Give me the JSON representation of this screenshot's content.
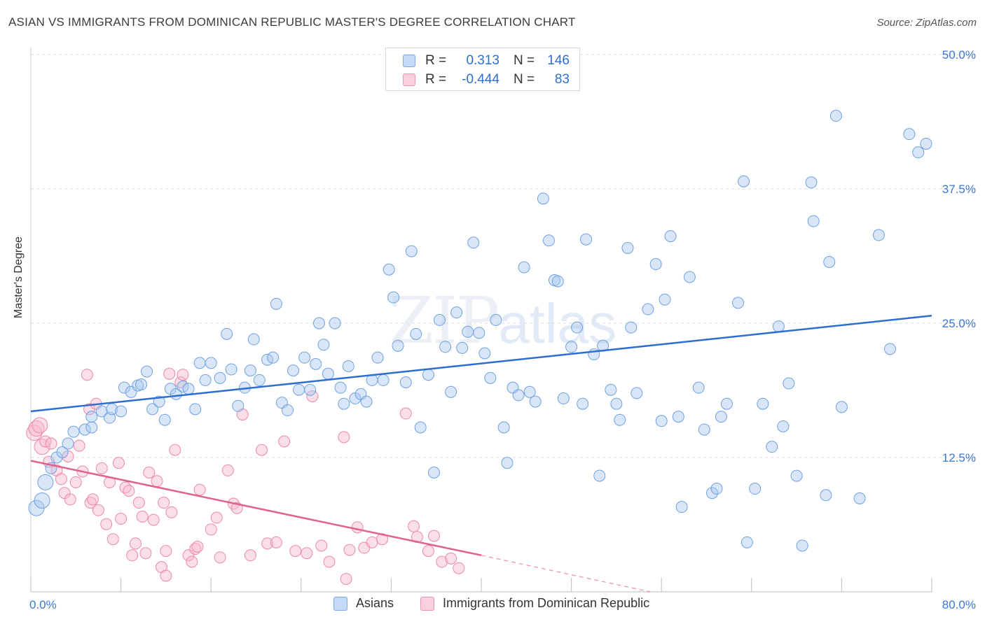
{
  "title": "ASIAN VS IMMIGRANTS FROM DOMINICAN REPUBLIC MASTER'S DEGREE CORRELATION CHART",
  "source": "Source: ZipAtlas.com",
  "watermark": {
    "zip": "ZIP",
    "atlas": "atlas"
  },
  "legend": {
    "rows": [
      {
        "r_label": "R =",
        "r_value": "0.313",
        "n_label": "N =",
        "n_value": "146",
        "color": "#a9c8ef"
      },
      {
        "r_label": "R =",
        "r_value": "-0.444",
        "n_label": "N =",
        "n_value": "83",
        "color": "#f6b7cb"
      }
    ]
  },
  "bottom_legend": [
    {
      "label": "Asians",
      "color": "#a9c8ef"
    },
    {
      "label": "Immigrants from Dominican Republic",
      "color": "#f6b7cb"
    }
  ],
  "chart_data": {
    "type": "scatter",
    "title": "ASIAN VS IMMIGRANTS FROM DOMINICAN REPUBLIC MASTER'S DEGREE CORRELATION CHART",
    "xlabel": "",
    "ylabel": "Master's Degree",
    "xlim": [
      0,
      80
    ],
    "ylim": [
      0,
      50
    ],
    "x_tick_labels": [
      "0.0%",
      "80.0%"
    ],
    "y_tick_labels": [
      "12.5%",
      "25.0%",
      "37.5%",
      "50.0%"
    ],
    "y_ticks": [
      12.5,
      25.0,
      37.5,
      50.0
    ],
    "grid": true,
    "legend_position": "top-center",
    "colors": {
      "asians": "#6fa1e0",
      "asians_fill": "#a9c8ef",
      "asians_line": "#2d6fd0",
      "dominican": "#ec88aa",
      "dominican_fill": "#f6b7cb",
      "dominican_line": "#e0628e",
      "axis_text": "#3a78d4"
    },
    "series": [
      {
        "name": "Asians",
        "trend": {
          "x": [
            0,
            80
          ],
          "y": [
            16.8,
            25.7
          ]
        },
        "points": [
          [
            0.5,
            7.8
          ],
          [
            1.0,
            8.5
          ],
          [
            1.3,
            10.2
          ],
          [
            1.8,
            11.5
          ],
          [
            2.3,
            12.5
          ],
          [
            2.8,
            13.0
          ],
          [
            3.3,
            13.8
          ],
          [
            3.8,
            14.9
          ],
          [
            4.8,
            15.1
          ],
          [
            5.4,
            15.3
          ],
          [
            5.4,
            16.3
          ],
          [
            6.3,
            16.8
          ],
          [
            7.0,
            16.2
          ],
          [
            7.2,
            17.0
          ],
          [
            8.0,
            16.8
          ],
          [
            8.3,
            19.0
          ],
          [
            8.9,
            18.6
          ],
          [
            9.5,
            19.2
          ],
          [
            9.8,
            19.3
          ],
          [
            10.3,
            20.5
          ],
          [
            10.8,
            17.0
          ],
          [
            11.4,
            17.7
          ],
          [
            11.9,
            16.0
          ],
          [
            12.4,
            18.9
          ],
          [
            12.9,
            18.4
          ],
          [
            13.5,
            19.1
          ],
          [
            14.0,
            18.9
          ],
          [
            14.6,
            17.0
          ],
          [
            15.0,
            21.3
          ],
          [
            15.5,
            19.7
          ],
          [
            16.0,
            21.3
          ],
          [
            16.8,
            19.9
          ],
          [
            17.4,
            24.0
          ],
          [
            17.8,
            20.7
          ],
          [
            18.4,
            17.3
          ],
          [
            19.0,
            19.0
          ],
          [
            19.5,
            20.6
          ],
          [
            19.8,
            23.5
          ],
          [
            20.3,
            19.7
          ],
          [
            21.0,
            21.6
          ],
          [
            21.5,
            21.8
          ],
          [
            21.8,
            26.8
          ],
          [
            22.3,
            17.6
          ],
          [
            22.8,
            16.9
          ],
          [
            23.3,
            20.6
          ],
          [
            23.8,
            18.8
          ],
          [
            24.3,
            21.8
          ],
          [
            24.8,
            18.8
          ],
          [
            25.3,
            21.2
          ],
          [
            25.6,
            25.0
          ],
          [
            26.0,
            23.0
          ],
          [
            26.4,
            20.3
          ],
          [
            27.0,
            25.0
          ],
          [
            27.5,
            19.0
          ],
          [
            27.8,
            17.5
          ],
          [
            28.2,
            21.0
          ],
          [
            28.8,
            18.0
          ],
          [
            29.3,
            18.4
          ],
          [
            29.8,
            17.7
          ],
          [
            30.3,
            19.7
          ],
          [
            30.8,
            21.8
          ],
          [
            31.3,
            19.7
          ],
          [
            31.8,
            30.0
          ],
          [
            32.2,
            27.4
          ],
          [
            32.6,
            22.9
          ],
          [
            33.3,
            19.5
          ],
          [
            33.8,
            31.7
          ],
          [
            34.2,
            24.0
          ],
          [
            34.6,
            15.3
          ],
          [
            35.3,
            20.2
          ],
          [
            35.8,
            11.1
          ],
          [
            36.3,
            25.3
          ],
          [
            36.8,
            22.8
          ],
          [
            37.3,
            18.6
          ],
          [
            37.8,
            26.0
          ],
          [
            38.3,
            22.7
          ],
          [
            38.8,
            24.2
          ],
          [
            39.3,
            32.5
          ],
          [
            39.8,
            24.1
          ],
          [
            40.3,
            22.2
          ],
          [
            40.8,
            19.9
          ],
          [
            41.3,
            25.3
          ],
          [
            42.0,
            15.3
          ],
          [
            42.3,
            12.0
          ],
          [
            42.8,
            19.0
          ],
          [
            43.3,
            18.3
          ],
          [
            43.8,
            30.2
          ],
          [
            44.3,
            18.6
          ],
          [
            44.8,
            17.7
          ],
          [
            45.5,
            36.6
          ],
          [
            46.0,
            32.7
          ],
          [
            46.5,
            29.0
          ],
          [
            46.8,
            28.9
          ],
          [
            47.3,
            18.0
          ],
          [
            48.0,
            22.8
          ],
          [
            48.5,
            24.6
          ],
          [
            49.0,
            17.5
          ],
          [
            49.3,
            32.8
          ],
          [
            50.0,
            22.1
          ],
          [
            50.5,
            10.8
          ],
          [
            50.8,
            22.9
          ],
          [
            51.5,
            18.8
          ],
          [
            52.0,
            17.5
          ],
          [
            52.3,
            16.0
          ],
          [
            53.0,
            32.0
          ],
          [
            53.3,
            24.6
          ],
          [
            53.8,
            18.5
          ],
          [
            54.8,
            26.3
          ],
          [
            55.5,
            30.5
          ],
          [
            56.0,
            15.9
          ],
          [
            56.3,
            27.2
          ],
          [
            56.8,
            33.1
          ],
          [
            57.5,
            16.3
          ],
          [
            57.8,
            7.9
          ],
          [
            58.5,
            29.3
          ],
          [
            59.3,
            19.0
          ],
          [
            59.8,
            15.1
          ],
          [
            60.5,
            9.2
          ],
          [
            60.9,
            9.6
          ],
          [
            61.3,
            16.3
          ],
          [
            61.8,
            17.5
          ],
          [
            62.8,
            26.9
          ],
          [
            63.3,
            38.2
          ],
          [
            63.6,
            4.6
          ],
          [
            64.3,
            9.6
          ],
          [
            65.0,
            17.5
          ],
          [
            65.8,
            13.5
          ],
          [
            66.4,
            24.7
          ],
          [
            66.8,
            15.4
          ],
          [
            67.3,
            19.4
          ],
          [
            68.0,
            10.8
          ],
          [
            68.5,
            4.3
          ],
          [
            69.3,
            38.1
          ],
          [
            69.5,
            34.5
          ],
          [
            70.6,
            9.0
          ],
          [
            70.9,
            30.7
          ],
          [
            71.5,
            44.3
          ],
          [
            72.0,
            17.2
          ],
          [
            73.6,
            8.7
          ],
          [
            75.3,
            33.2
          ],
          [
            76.3,
            22.6
          ],
          [
            78.0,
            42.6
          ],
          [
            78.8,
            40.9
          ],
          [
            79.5,
            41.7
          ]
        ]
      },
      {
        "name": "Immigrants from Dominican Republic",
        "trend": {
          "x": [
            0,
            40
          ],
          "y": [
            12.2,
            3.4
          ],
          "dashed_to": [
            55,
            0
          ]
        },
        "points": [
          [
            0.3,
            14.8
          ],
          [
            0.5,
            15.2
          ],
          [
            0.8,
            15.5
          ],
          [
            1.0,
            13.5
          ],
          [
            1.3,
            14.0
          ],
          [
            1.6,
            12.1
          ],
          [
            1.8,
            13.8
          ],
          [
            2.3,
            11.3
          ],
          [
            2.7,
            10.5
          ],
          [
            3.0,
            9.2
          ],
          [
            3.3,
            12.6
          ],
          [
            3.5,
            8.6
          ],
          [
            4.0,
            10.2
          ],
          [
            4.3,
            13.6
          ],
          [
            4.6,
            11.2
          ],
          [
            5.0,
            20.2
          ],
          [
            5.2,
            17.0
          ],
          [
            5.3,
            8.3
          ],
          [
            5.5,
            8.6
          ],
          [
            5.8,
            17.5
          ],
          [
            6.0,
            7.6
          ],
          [
            6.3,
            11.5
          ],
          [
            6.7,
            6.3
          ],
          [
            7.0,
            10.2
          ],
          [
            7.3,
            4.9
          ],
          [
            7.8,
            12.0
          ],
          [
            8.0,
            6.8
          ],
          [
            8.4,
            9.7
          ],
          [
            8.7,
            9.4
          ],
          [
            9.0,
            3.4
          ],
          [
            9.3,
            4.5
          ],
          [
            9.6,
            8.3
          ],
          [
            9.9,
            7.0
          ],
          [
            10.2,
            3.6
          ],
          [
            10.5,
            11.1
          ],
          [
            10.9,
            6.7
          ],
          [
            11.2,
            10.3
          ],
          [
            11.6,
            2.3
          ],
          [
            11.8,
            8.3
          ],
          [
            12.0,
            3.8
          ],
          [
            12.3,
            20.3
          ],
          [
            12.5,
            7.4
          ],
          [
            12.8,
            13.2
          ],
          [
            13.3,
            19.5
          ],
          [
            13.5,
            20.2
          ],
          [
            14.0,
            3.4
          ],
          [
            14.3,
            2.8
          ],
          [
            14.6,
            4.0
          ],
          [
            15.0,
            9.5
          ],
          [
            16.0,
            5.8
          ],
          [
            16.5,
            6.9
          ],
          [
            16.8,
            3.2
          ],
          [
            17.5,
            11.3
          ],
          [
            18.0,
            8.2
          ],
          [
            18.3,
            7.8
          ],
          [
            18.8,
            16.5
          ],
          [
            19.5,
            3.4
          ],
          [
            20.5,
            13.2
          ],
          [
            21.0,
            4.5
          ],
          [
            21.8,
            4.6
          ],
          [
            22.5,
            14.0
          ],
          [
            23.5,
            3.8
          ],
          [
            24.5,
            3.6
          ],
          [
            25.0,
            18.2
          ],
          [
            25.8,
            4.3
          ],
          [
            26.5,
            2.8
          ],
          [
            27.8,
            14.4
          ],
          [
            28.3,
            3.9
          ],
          [
            29.0,
            6.0
          ],
          [
            29.6,
            4.1
          ],
          [
            30.3,
            4.6
          ],
          [
            31.2,
            4.9
          ],
          [
            33.3,
            16.6
          ],
          [
            34.0,
            6.1
          ],
          [
            34.3,
            5.1
          ],
          [
            35.3,
            3.8
          ],
          [
            35.8,
            5.2
          ],
          [
            36.5,
            2.8
          ],
          [
            37.3,
            3.1
          ],
          [
            12.0,
            1.5
          ],
          [
            28.0,
            1.2
          ],
          [
            38.0,
            2.2
          ],
          [
            14.8,
            4.2
          ]
        ]
      }
    ]
  }
}
